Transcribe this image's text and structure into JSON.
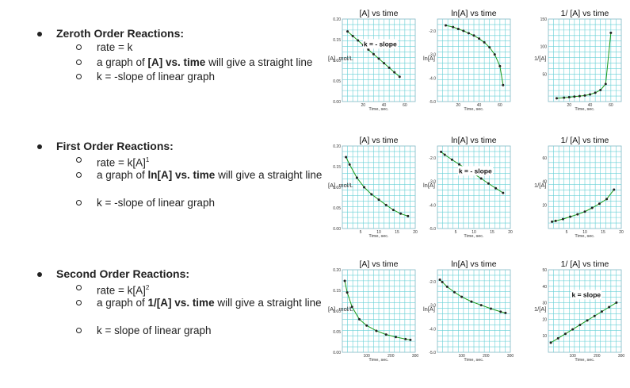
{
  "sections": [
    {
      "heading": "Zeroth Order Reactions:",
      "items": [
        {
          "pre": "rate = k"
        },
        {
          "pre": "a graph of ",
          "bold": "[A] vs. time",
          "post": " will give a straight line"
        },
        {
          "pre": "k = -slope of linear graph"
        }
      ]
    },
    {
      "heading": "First Order Reactions:",
      "items": [
        {
          "pre": "rate = k[A]",
          "sup": "1"
        },
        {
          "pre": "a graph of ",
          "bold": "ln[A] vs. time",
          "post": " will give a straight line"
        },
        {
          "pre": "k = -slope of linear graph"
        }
      ]
    },
    {
      "heading": "Second Order Reactions:",
      "items": [
        {
          "pre": "rate = k[A]",
          "sup": "2"
        },
        {
          "pre": "a graph of ",
          "bold": "1/[A] vs. time",
          "post": " will give a straight line"
        },
        {
          "pre": "k = slope of linear graph"
        }
      ]
    }
  ],
  "chart_data": [
    {
      "type": "line",
      "title": "[A]  vs time",
      "ylabel": "[A], mol/L",
      "xlabel": "Time, sec.",
      "xticks": [
        20,
        40,
        60
      ],
      "yticks": [
        {
          "v": 0,
          "t": "0.00"
        },
        {
          "v": 0.05,
          "t": "0.05"
        },
        {
          "v": 0.1,
          "t": "0.10"
        },
        {
          "v": 0.15,
          "t": "0.15"
        },
        {
          "v": 0.2,
          "t": "0.20"
        }
      ],
      "xlim": [
        0,
        70
      ],
      "ylim": [
        0,
        0.2
      ],
      "annotation": "k = - slope",
      "x": [
        5,
        10,
        15,
        20,
        25,
        30,
        35,
        40,
        45,
        50,
        55
      ],
      "y": [
        0.17,
        0.159,
        0.148,
        0.137,
        0.126,
        0.115,
        0.104,
        0.093,
        0.082,
        0.071,
        0.06
      ]
    },
    {
      "type": "line",
      "title": "ln[A]  vs time",
      "ylabel": "ln[A]",
      "xlabel": "Time, sec.",
      "xticks": [
        20,
        40,
        60
      ],
      "yticks": [
        {
          "v": -2,
          "t": "-2.0"
        },
        {
          "v": -3,
          "t": "-3.0"
        },
        {
          "v": -4,
          "t": "-4.0"
        },
        {
          "v": -5,
          "t": "-5.0"
        }
      ],
      "xlim": [
        0,
        70
      ],
      "ylim": [
        -5,
        -1.5
      ],
      "annotation": "",
      "x": [
        8,
        15,
        20,
        25,
        30,
        35,
        40,
        45,
        50,
        55,
        60,
        63
      ],
      "y": [
        -1.77,
        -1.84,
        -1.92,
        -2.0,
        -2.1,
        -2.2,
        -2.33,
        -2.49,
        -2.7,
        -3.0,
        -3.5,
        -4.3
      ]
    },
    {
      "type": "line",
      "title": "1/ [A]  vs time",
      "ylabel": "1/[A]",
      "xlabel": "Time, sec.",
      "xticks": [
        20,
        40,
        60
      ],
      "yticks": [
        {
          "v": 50,
          "t": "50"
        },
        {
          "v": 100,
          "t": "100"
        },
        {
          "v": 150,
          "t": "150"
        }
      ],
      "xlim": [
        0,
        70
      ],
      "ylim": [
        0,
        150
      ],
      "annotation": "",
      "x": [
        8,
        15,
        20,
        25,
        30,
        35,
        40,
        45,
        50,
        55,
        60
      ],
      "y": [
        6,
        7,
        8,
        9,
        10,
        11,
        13,
        16,
        21,
        32,
        125
      ]
    },
    {
      "type": "line",
      "title": "[A]  vs time",
      "ylabel": "[A], mol/L",
      "xlabel": "Time, sec.",
      "xticks": [
        5,
        10,
        15,
        20
      ],
      "yticks": [
        {
          "v": 0,
          "t": "0.00"
        },
        {
          "v": 0.05,
          "t": "0.05"
        },
        {
          "v": 0.1,
          "t": "0.10"
        },
        {
          "v": 0.15,
          "t": "0.15"
        },
        {
          "v": 0.2,
          "t": "0.20"
        }
      ],
      "xlim": [
        0,
        20
      ],
      "ylim": [
        0,
        0.2
      ],
      "annotation": "",
      "x": [
        1,
        2,
        4,
        6,
        8,
        10,
        12,
        14,
        16,
        18
      ],
      "y": [
        0.173,
        0.155,
        0.123,
        0.1,
        0.083,
        0.07,
        0.057,
        0.045,
        0.036,
        0.03
      ]
    },
    {
      "type": "line",
      "title": "ln[A]  vs time",
      "ylabel": "ln[A]",
      "xlabel": "Time, sec.",
      "xticks": [
        5,
        10,
        15,
        20
      ],
      "yticks": [
        {
          "v": -2,
          "t": "-2.0"
        },
        {
          "v": -3,
          "t": "-3.0"
        },
        {
          "v": -4,
          "t": "-4.0"
        },
        {
          "v": -5,
          "t": "-5.0"
        }
      ],
      "xlim": [
        0,
        20
      ],
      "ylim": [
        -5,
        -1.5
      ],
      "annotation": "k = - slope",
      "x": [
        1,
        2,
        4,
        6,
        8,
        10,
        12,
        14,
        16,
        18
      ],
      "y": [
        -1.75,
        -1.87,
        -2.08,
        -2.28,
        -2.48,
        -2.68,
        -2.88,
        -3.09,
        -3.29,
        -3.49
      ]
    },
    {
      "type": "line",
      "title": "1/ [A]  vs time",
      "ylabel": "1/[A]",
      "xlabel": "Time, sec.",
      "xticks": [
        5,
        10,
        15,
        20
      ],
      "yticks": [
        {
          "v": 20,
          "t": "20"
        },
        {
          "v": 40,
          "t": "40"
        },
        {
          "v": 60,
          "t": "60"
        }
      ],
      "xlim": [
        0,
        20
      ],
      "ylim": [
        0,
        70
      ],
      "annotation": "",
      "x": [
        1,
        2,
        4,
        6,
        8,
        10,
        12,
        14,
        16,
        18
      ],
      "y": [
        5.8,
        6.5,
        8,
        10,
        12,
        14.3,
        17.5,
        21,
        25,
        33
      ]
    },
    {
      "type": "line",
      "title": "[A]  vs time",
      "ylabel": "[A], mol/L",
      "xlabel": "Time, sec.",
      "xticks": [
        100,
        200,
        300
      ],
      "yticks": [
        {
          "v": 0,
          "t": "0.00"
        },
        {
          "v": 0.05,
          "t": "0.05"
        },
        {
          "v": 0.1,
          "t": "0.10"
        },
        {
          "v": 0.15,
          "t": "0.15"
        },
        {
          "v": 0.2,
          "t": "0.20"
        }
      ],
      "xlim": [
        0,
        300
      ],
      "ylim": [
        0,
        0.2
      ],
      "annotation": "",
      "x": [
        10,
        20,
        40,
        70,
        100,
        140,
        180,
        220,
        260,
        280
      ],
      "y": [
        0.173,
        0.145,
        0.11,
        0.08,
        0.065,
        0.052,
        0.043,
        0.037,
        0.032,
        0.03
      ]
    },
    {
      "type": "line",
      "title": "ln[A]  vs time",
      "ylabel": "ln[A]",
      "xlabel": "Time, sec.",
      "xticks": [
        100,
        200,
        300
      ],
      "yticks": [
        {
          "v": -2,
          "t": "-2.0"
        },
        {
          "v": -3,
          "t": "-3.0"
        },
        {
          "v": -4,
          "t": "-4.0"
        },
        {
          "v": -5,
          "t": "-5.0"
        }
      ],
      "xlim": [
        0,
        300
      ],
      "ylim": [
        -5,
        -1.5
      ],
      "annotation": "",
      "x": [
        10,
        20,
        40,
        70,
        100,
        140,
        180,
        220,
        260,
        280
      ],
      "y": [
        -1.92,
        -2.02,
        -2.22,
        -2.45,
        -2.65,
        -2.85,
        -3.0,
        -3.15,
        -3.28,
        -3.33
      ]
    },
    {
      "type": "line",
      "title": "1/ [A]  vs time",
      "ylabel": "1/[A]",
      "xlabel": "Time, sec.",
      "xticks": [
        100,
        200,
        300
      ],
      "yticks": [
        {
          "v": 10,
          "t": "10"
        },
        {
          "v": 20,
          "t": "20"
        },
        {
          "v": 30,
          "t": "30"
        },
        {
          "v": 40,
          "t": "40"
        },
        {
          "v": 50,
          "t": "50"
        }
      ],
      "xlim": [
        0,
        300
      ],
      "ylim": [
        0,
        50
      ],
      "annotation": "k = slope",
      "x": [
        10,
        40,
        70,
        100,
        130,
        160,
        190,
        220,
        250,
        280
      ],
      "y": [
        5.8,
        8.5,
        11.2,
        13.9,
        16.6,
        19.3,
        22,
        24.7,
        27.4,
        30.1
      ]
    }
  ]
}
